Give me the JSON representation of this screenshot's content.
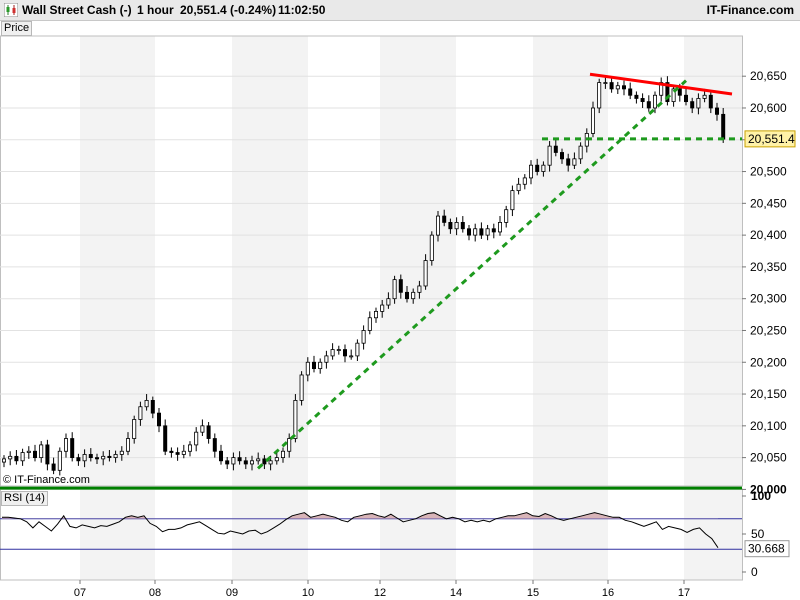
{
  "header": {
    "title": "Wall Street Cash (-)",
    "timeframe": "1 hour",
    "quote": "20,551.4 (-0.24%)",
    "time": "11:02:50",
    "brand": "IT-Finance.com",
    "icon": "candlestick-chart-icon"
  },
  "price_pane": {
    "label": "Price",
    "watermark": "© IT-Finance.com"
  },
  "rsi_pane": {
    "label": "RSI (14)"
  },
  "colors": {
    "red_line": "#ff0000",
    "green_line": "#008000",
    "dotted_line": "#1e9a1e",
    "rsi_fill": "#d8b4b8",
    "last_tag": "#fff2a8"
  },
  "chart_data": [
    {
      "type": "candlestick",
      "title": "Wall Street Cash (-)",
      "timeframe": "1 hour",
      "y_ticks": [
        20000,
        20050,
        20100,
        20150,
        20200,
        20250,
        20300,
        20350,
        20400,
        20450,
        20500,
        20550,
        20600,
        20650
      ],
      "y_tick_labels": [
        "20,000",
        "20,050",
        "20,100",
        "20,150",
        "20,200",
        "20,250",
        "20,300",
        "20,350",
        "20,400",
        "20,450",
        "20,500",
        "20,550",
        "20,600",
        "20,650"
      ],
      "ylim": [
        19992,
        20675
      ],
      "x_tick_labels": [
        "07",
        "08",
        "09",
        "10",
        "12",
        "14",
        "15",
        "16",
        "17"
      ],
      "last_value": 20551.4,
      "last_value_label": "20,551.4",
      "series": [
        {
          "name": "price",
          "points": [
            [
              0,
              20048
            ],
            [
              1,
              20052
            ],
            [
              2,
              20045
            ],
            [
              3,
              20058
            ],
            [
              4,
              20060
            ],
            [
              5,
              20050
            ],
            [
              6,
              20070
            ],
            [
              7,
              20040
            ],
            [
              8,
              20030
            ],
            [
              9,
              20060
            ],
            [
              10,
              20080
            ],
            [
              11,
              20050
            ],
            [
              12,
              20045
            ],
            [
              13,
              20055
            ],
            [
              14,
              20050
            ],
            [
              15,
              20048
            ],
            [
              16,
              20052
            ],
            [
              17,
              20050
            ],
            [
              18,
              20055
            ],
            [
              19,
              20060
            ],
            [
              20,
              20080
            ],
            [
              21,
              20110
            ],
            [
              22,
              20130
            ],
            [
              23,
              20140
            ],
            [
              24,
              20120
            ],
            [
              25,
              20100
            ],
            [
              26,
              20060
            ],
            [
              27,
              20058
            ],
            [
              28,
              20055
            ],
            [
              29,
              20060
            ],
            [
              30,
              20070
            ],
            [
              31,
              20090
            ],
            [
              32,
              20100
            ],
            [
              33,
              20080
            ],
            [
              34,
              20060
            ],
            [
              35,
              20045
            ],
            [
              36,
              20040
            ],
            [
              37,
              20050
            ],
            [
              38,
              20045
            ],
            [
              39,
              20040
            ],
            [
              40,
              20045
            ],
            [
              41,
              20048
            ],
            [
              42,
              20040
            ],
            [
              43,
              20045
            ],
            [
              44,
              20050
            ],
            [
              45,
              20060
            ],
            [
              46,
              20080
            ],
            [
              47,
              20140
            ],
            [
              48,
              20180
            ],
            [
              49,
              20200
            ],
            [
              50,
              20190
            ],
            [
              51,
              20200
            ],
            [
              52,
              20210
            ],
            [
              53,
              20220
            ],
            [
              54,
              20220
            ],
            [
              55,
              20210
            ],
            [
              56,
              20210
            ],
            [
              57,
              20230
            ],
            [
              58,
              20250
            ],
            [
              59,
              20270
            ],
            [
              60,
              20280
            ],
            [
              61,
              20290
            ],
            [
              62,
              20300
            ],
            [
              63,
              20330
            ],
            [
              64,
              20310
            ],
            [
              65,
              20300
            ],
            [
              66,
              20310
            ],
            [
              67,
              20320
            ],
            [
              68,
              20360
            ],
            [
              69,
              20400
            ],
            [
              70,
              20430
            ],
            [
              71,
              20420
            ],
            [
              72,
              20410
            ],
            [
              73,
              20420
            ],
            [
              74,
              20410
            ],
            [
              75,
              20400
            ],
            [
              76,
              20410
            ],
            [
              77,
              20400
            ],
            [
              78,
              20410
            ],
            [
              79,
              20405
            ],
            [
              80,
              20420
            ],
            [
              81,
              20440
            ],
            [
              82,
              20470
            ],
            [
              83,
              20480
            ],
            [
              84,
              20490
            ],
            [
              85,
              20510
            ],
            [
              86,
              20500
            ],
            [
              87,
              20510
            ],
            [
              88,
              20540
            ],
            [
              89,
              20530
            ],
            [
              90,
              20520
            ],
            [
              91,
              20510
            ],
            [
              92,
              20520
            ],
            [
              93,
              20540
            ],
            [
              94,
              20560
            ],
            [
              95,
              20600
            ],
            [
              96,
              20640
            ],
            [
              97,
              20640
            ],
            [
              98,
              20630
            ],
            [
              99,
              20635
            ],
            [
              100,
              20630
            ],
            [
              101,
              20620
            ],
            [
              102,
              20615
            ],
            [
              103,
              20610
            ],
            [
              104,
              20600
            ],
            [
              105,
              20620
            ],
            [
              106,
              20640
            ],
            [
              107,
              20610
            ],
            [
              108,
              20630
            ],
            [
              109,
              20620
            ],
            [
              110,
              20610
            ],
            [
              111,
              20600
            ],
            [
              112,
              20615
            ],
            [
              113,
              20620
            ],
            [
              114,
              20600
            ],
            [
              115,
              20590
            ],
            [
              116,
              20551
            ]
          ]
        }
      ],
      "annotations": [
        {
          "type": "resistance-trendline",
          "color": "red",
          "from": [
            95,
            20653
          ],
          "to": [
            117,
            20622
          ]
        },
        {
          "type": "support-trendline",
          "color": "green",
          "style": "dotted",
          "from": [
            44,
            20033
          ],
          "to": [
            109,
            20643
          ]
        },
        {
          "type": "horizontal-line",
          "color": "green",
          "style": "dotted",
          "y": 20551.4,
          "from_x": 88
        },
        {
          "type": "horizontal-line",
          "color": "green",
          "style": "solid",
          "y": 20002
        }
      ]
    },
    {
      "type": "line",
      "title": "RSI (14)",
      "y_ticks": [
        0,
        50,
        100
      ],
      "y_tick_labels": [
        "0",
        "50",
        "100"
      ],
      "ylim": [
        -5,
        108
      ],
      "reference_lines": [
        70,
        30
      ],
      "last_value": 30.668,
      "last_value_label": "30.668",
      "series": [
        {
          "name": "RSI",
          "values": [
            72,
            72,
            71,
            70,
            66,
            58,
            66,
            60,
            54,
            63,
            74,
            60,
            58,
            62,
            60,
            58,
            61,
            60,
            63,
            66,
            72,
            74,
            72,
            74,
            64,
            60,
            53,
            56,
            56,
            58,
            62,
            64,
            66,
            61,
            56,
            51,
            50,
            54,
            52,
            50,
            54,
            55,
            50,
            53,
            58,
            63,
            69,
            74,
            76,
            78,
            72,
            74,
            76,
            74,
            72,
            68,
            66,
            72,
            74,
            76,
            77,
            74,
            72,
            76,
            71,
            66,
            68,
            70,
            74,
            77,
            78,
            74,
            70,
            72,
            70,
            66,
            68,
            66,
            68,
            66,
            70,
            72,
            74,
            74,
            76,
            78,
            74,
            73,
            77,
            74,
            70,
            68,
            70,
            72,
            74,
            76,
            78,
            76,
            74,
            72,
            72,
            68,
            66,
            63,
            60,
            63,
            66,
            56,
            60,
            58,
            56,
            52,
            56,
            58,
            50,
            44,
            32
          ]
        }
      ]
    }
  ]
}
